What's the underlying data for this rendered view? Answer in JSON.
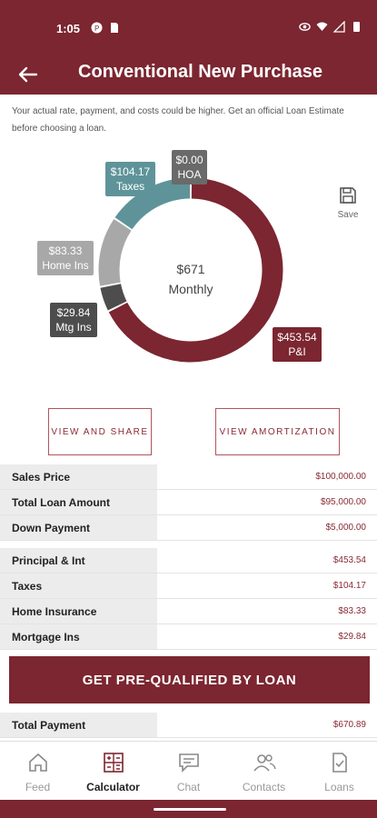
{
  "status_bar": {
    "time": "1:05"
  },
  "app_bar": {
    "title": "Conventional New Purchase"
  },
  "disclaimer": "Your actual rate, payment, and costs could be higher. Get an official Loan Estimate before choosing a loan.",
  "chart_data": {
    "type": "pie",
    "donut": true,
    "center": {
      "amount": "$671",
      "label": "Monthly"
    },
    "slices": [
      {
        "name": "P&I",
        "amount": "$453.54",
        "value": 453.54,
        "color": "#7b2630"
      },
      {
        "name": "Mtg Ins",
        "amount": "$29.84",
        "value": 29.84,
        "color": "#4d4d4d"
      },
      {
        "name": "Home Ins",
        "amount": "$83.33",
        "value": 83.33,
        "color": "#a8a8a8"
      },
      {
        "name": "Taxes",
        "amount": "$104.17",
        "value": 104.17,
        "color": "#5e9499"
      },
      {
        "name": "HOA",
        "amount": "$0.00",
        "value": 0,
        "color": "#6a6a6a"
      }
    ]
  },
  "callouts": {
    "hoa": {
      "amount": "$0.00",
      "label": "HOA"
    },
    "taxes": {
      "amount": "$104.17",
      "label": "Taxes"
    },
    "home_ins": {
      "amount": "$83.33",
      "label": "Home Ins"
    },
    "mtg_ins": {
      "amount": "$29.84",
      "label": "Mtg Ins"
    },
    "pi": {
      "amount": "$453.54",
      "label": "P&I"
    }
  },
  "save": {
    "label": "Save",
    "icon": "floppy-disk-icon"
  },
  "buttons": {
    "view_share": "VIEW AND SHARE",
    "view_amortization": "VIEW AMORTIZATION",
    "cta": "GET PRE-QUALIFIED BY LOAN"
  },
  "loan_table": [
    {
      "label": "Sales Price",
      "value": "$100,000.00"
    },
    {
      "label": "Total Loan Amount",
      "value": "$95,000.00"
    },
    {
      "label": "Down Payment",
      "value": "$5,000.00"
    }
  ],
  "payment_table": [
    {
      "label": "Principal & Int",
      "value": "$453.54"
    },
    {
      "label": "Taxes",
      "value": "$104.17"
    },
    {
      "label": "Home Insurance",
      "value": "$83.33"
    },
    {
      "label": "Mortgage Ins",
      "value": "$29.84"
    }
  ],
  "total": {
    "label": "Total Payment",
    "value": "$670.89"
  },
  "nav": [
    {
      "label": "Feed",
      "icon": "home-icon"
    },
    {
      "label": "Calculator",
      "icon": "calculator-icon"
    },
    {
      "label": "Chat",
      "icon": "chat-icon"
    },
    {
      "label": "Contacts",
      "icon": "contacts-icon"
    },
    {
      "label": "Loans",
      "icon": "document-check-icon"
    }
  ],
  "colors": {
    "brand": "#7b2630",
    "accent_text": "#8a2a35",
    "label_bg": "#ececec"
  }
}
